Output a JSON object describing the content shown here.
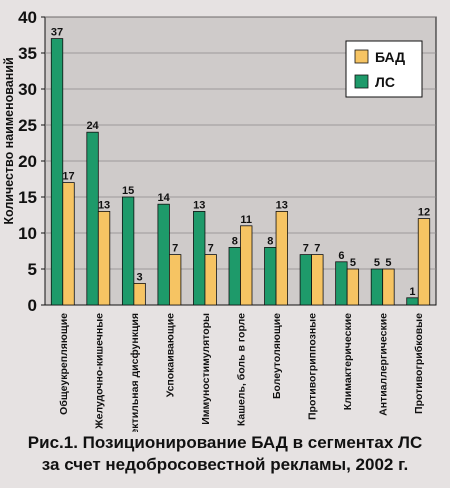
{
  "caption": {
    "line1": "Рис.1. Позиционирование БАД в сегментах ЛС",
    "line2": "за счет недобросовестной рекламы, 2002 г."
  },
  "colors": {
    "background": "#e6e2e2",
    "plot_area": "#cfcbca",
    "lc": "#1e9a6a",
    "bad": "#f6c463",
    "outline": "#111111"
  },
  "chart_data": {
    "type": "bar",
    "ylabel": "Количество наименований",
    "ylim": [
      0,
      40
    ],
    "yticks": [
      0,
      5,
      10,
      15,
      20,
      25,
      30,
      35,
      40
    ],
    "grid": "horizontal",
    "legend_position": "top-right",
    "categories": [
      "Общеукрепляющие",
      "Желудочно-кишечные",
      "Эректильная дисфункция",
      "Успокаивающие",
      "Иммуностимуляторы",
      "Кашель, боль в горле",
      "Болеутоляющие",
      "Противогриппозные",
      "Климактерические",
      "Антиаллергические",
      "Противогрибковые"
    ],
    "series": [
      {
        "name": "ЛС",
        "color": "#1e9a6a",
        "values": [
          37,
          24,
          15,
          14,
          13,
          8,
          8,
          7,
          6,
          5,
          1
        ]
      },
      {
        "name": "БАД",
        "color": "#f6c463",
        "values": [
          17,
          13,
          3,
          7,
          7,
          11,
          13,
          7,
          5,
          5,
          12
        ]
      }
    ],
    "legend": [
      "БАД",
      "ЛС"
    ]
  }
}
